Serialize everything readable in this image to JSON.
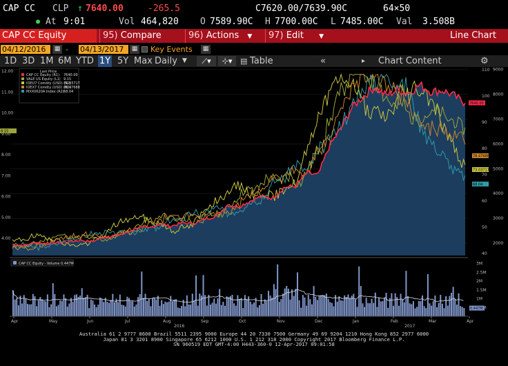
{
  "quote": {
    "ticker": "CAP CC",
    "clp_label": "CLP",
    "arrow": "↑",
    "last_price": "7640.00",
    "change": "-265.5",
    "bid_ask": "C7620.00/7639.90C",
    "size": "64×50",
    "at_label": "At",
    "time": "9:01",
    "vol_label": "Vol",
    "volume": "464,820",
    "o_label": "O",
    "open": "7589.90C",
    "h_label": "H",
    "high": "7700.00C",
    "l_label": "L",
    "low": "7485.00C",
    "val_label": "Val",
    "value": "3.508B"
  },
  "function_bar": {
    "security": "CAP CC Equity",
    "compare_num": "95)",
    "compare": "Compare",
    "actions_num": "96)",
    "actions": "Actions",
    "edit_num": "97)",
    "edit": "Edit",
    "title": "Line Chart"
  },
  "date_range": {
    "start": "04/12/2016",
    "end": "04/13/2017",
    "key_events": "Key Events"
  },
  "periods": [
    "1D",
    "3D",
    "1M",
    "6M",
    "YTD",
    "1Y",
    "5Y",
    "Max"
  ],
  "active_period": "1Y",
  "frequency": "Daily",
  "toolbar": {
    "table": "Table",
    "chart_content": "Chart Content",
    "collapse": "«"
  },
  "colors": {
    "cap": "#ff2b47",
    "vale": "#9aa43a",
    "ioe": "#c8c440",
    "ioex": "#c9862e",
    "mxx": "#2f9aa6",
    "area_fill": "#1c3d5e",
    "volume_bar": "#7f95c8"
  },
  "chart_data": {
    "type": "line",
    "legend_title": "Last Price",
    "series": [
      {
        "name": "CAP CC Equity (R1)",
        "last": "7640.00",
        "color": "#ff2b47",
        "axis": "right",
        "values": [
          1950,
          1900,
          2030,
          1980,
          2020,
          2060,
          2120,
          2060,
          2230,
          2310,
          2390,
          2640,
          2590,
          2780,
          2680,
          2820,
          2790,
          2970,
          3100,
          3540,
          3480,
          3700,
          3880,
          3820,
          4250,
          4290,
          4840,
          4730,
          5920,
          6600,
          7470,
          7920,
          8300,
          7950,
          8180,
          8050,
          8380,
          8100,
          8160,
          7950,
          7640
        ]
      },
      {
        "name": "VALE US Equity (L1)",
        "last": "9.15",
        "color": "#9aa43a",
        "axis": "left"
      },
      {
        "name": "IOEU7 Comdty (USD) (R2)",
        "last": "73.03717",
        "color": "#c8c440",
        "axis": "right2"
      },
      {
        "name": "IOEX7 Comdty (USD) (R2)",
        "last": "78.47688",
        "color": "#c9862e",
        "axis": "right2"
      },
      {
        "name": "MXX0620A Index (R2)",
        "last": "68.04",
        "color": "#2f9aa6",
        "axis": "right2"
      }
    ],
    "x_labels": [
      "Apr",
      "May",
      "Jun",
      "Jul",
      "Aug",
      "Sep",
      "Oct",
      "Nov",
      "Dec",
      "Jan",
      "Feb",
      "Mar",
      "Apr"
    ],
    "year_labels": [
      "2016",
      "2017"
    ],
    "left_axis": [
      "12.00",
      "11.00",
      "10.00",
      "9.00",
      "8.00",
      "7.00",
      "6.00",
      "5.00",
      "4.00"
    ],
    "right_axis1": [
      "9000",
      "8000",
      "7000",
      "6000",
      "5000",
      "4000",
      "3000",
      "2000"
    ],
    "right_axis2": [
      "110",
      "100",
      "90",
      "80",
      "70",
      "60",
      "50",
      "40"
    ],
    "price_tags": [
      "7640.00",
      "78.47688",
      "73.03717",
      "68.04",
      "9.15"
    ],
    "volume": {
      "label": "CAP CC Equity - Volume 0.447M",
      "axis": [
        "3M",
        "2.5M",
        "2M",
        "1.5M",
        "1M",
        "0.5M"
      ],
      "tag": "0.447M"
    }
  },
  "footer": {
    "line1": "Australia 61 2 9777 8600 Brazil 5511 2395 9000 Europe 44 20 7330 7500 Germany 49 69 9204 1210 Hong Kong 852 2977 6000",
    "line2": "Japan 81 3 3201 8900          Singapore 65 6212 1000     U.S. 1 212 318 2000           Copyright 2017 Bloomberg Finance L.P.",
    "line3": "SN 960519 EDT  GMT-4:00 H443-360-0 12-Apr-2017 09:01:58"
  }
}
